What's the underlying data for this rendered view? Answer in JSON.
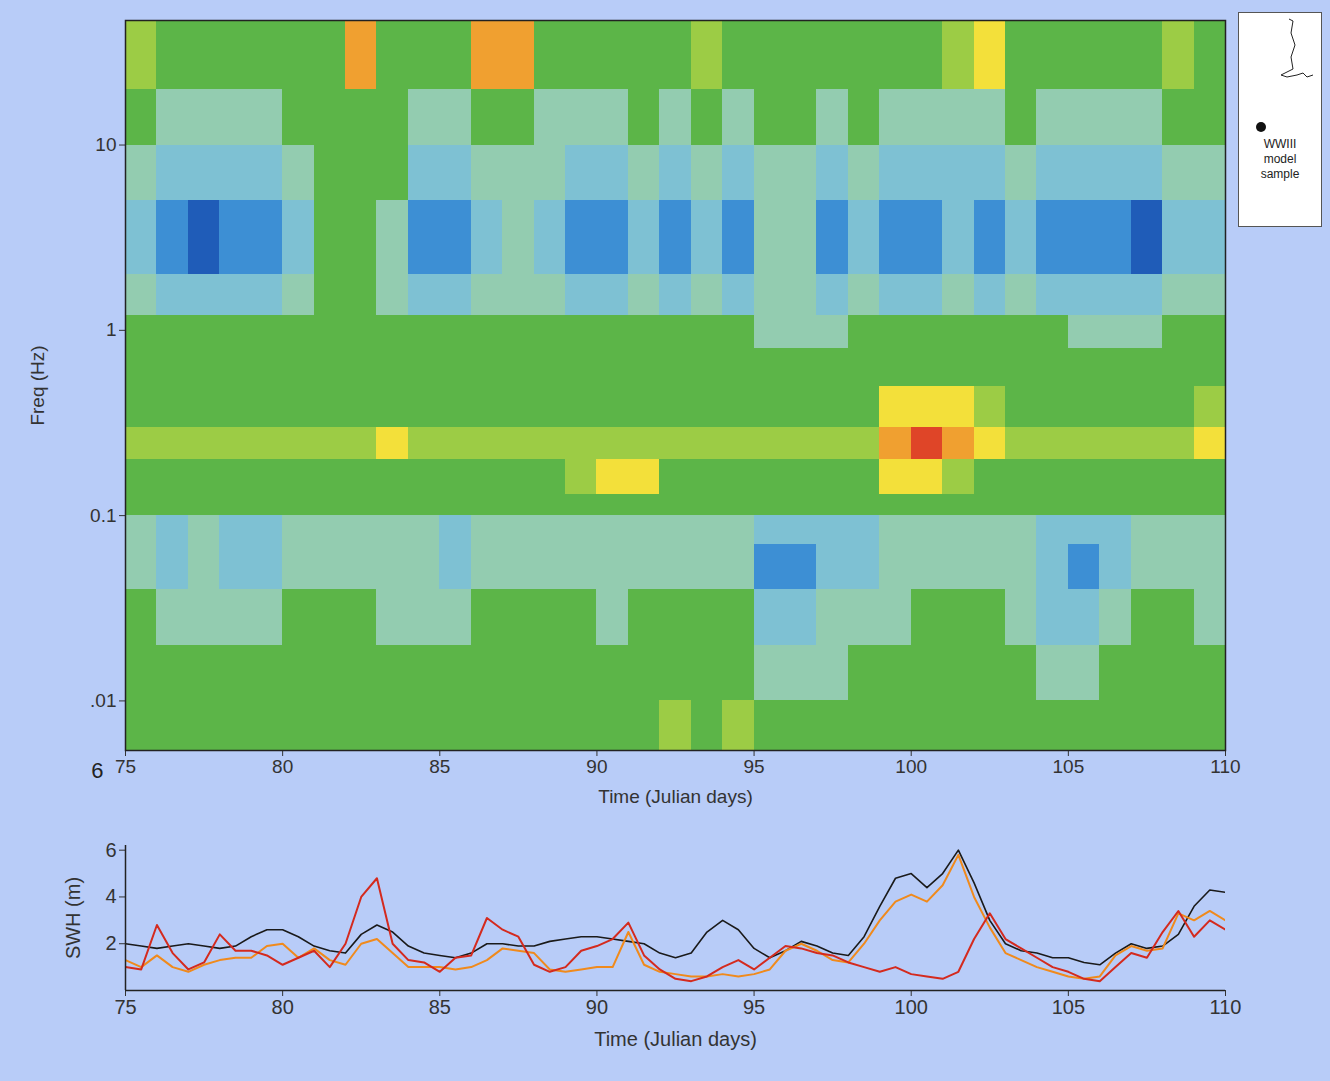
{
  "chart_data": [
    {
      "type": "heatmap",
      "x_label": "Time (Julian days)",
      "y_label": "Freq (Hz)",
      "log": "y",
      "grid": false,
      "xlim": [
        75,
        110
      ],
      "xticks": [
        75,
        80,
        85,
        90,
        95,
        100,
        105,
        110
      ],
      "ylim": [
        0.0054,
        47
      ],
      "yticks": [
        {
          "value": 0.01,
          "label": ".01"
        },
        0.1,
        1,
        10
      ],
      "zlim": [
        1,
        9
      ],
      "x_edges": [
        75,
        76,
        77,
        78,
        79,
        80,
        81,
        82,
        83,
        84,
        85,
        86,
        87,
        88,
        89,
        90,
        91,
        92,
        93,
        94,
        95,
        96,
        97,
        98,
        99,
        100,
        101,
        102,
        103,
        104,
        105,
        106,
        107,
        108,
        109,
        110
      ],
      "y_edges": [
        0.0054,
        0.01,
        0.02,
        0.04,
        0.07,
        0.1,
        0.13,
        0.2,
        0.3,
        0.5,
        0.8,
        1.2,
        2,
        5,
        10,
        20,
        47
      ],
      "cells": [
        [
          5,
          5,
          5,
          5,
          5,
          5,
          5,
          5,
          5,
          5,
          5,
          5,
          5,
          5,
          5,
          5,
          5,
          6,
          5,
          6,
          5,
          5,
          5,
          5,
          5,
          5,
          5,
          5,
          5,
          5,
          5,
          5,
          5,
          5,
          5
        ],
        [
          5,
          5,
          5,
          5,
          5,
          5,
          5,
          5,
          5,
          5,
          5,
          5,
          5,
          5,
          5,
          5,
          5,
          5,
          5,
          5,
          4,
          4,
          4,
          5,
          5,
          5,
          5,
          5,
          5,
          4,
          4,
          5,
          5,
          5,
          5
        ],
        [
          5,
          4,
          4,
          4,
          4,
          5,
          5,
          5,
          4,
          4,
          4,
          5,
          5,
          5,
          5,
          4,
          5,
          5,
          5,
          5,
          3,
          3,
          4,
          4,
          4,
          5,
          5,
          5,
          4,
          3,
          3,
          4,
          5,
          5,
          4
        ],
        [
          4,
          3,
          4,
          3,
          3,
          4,
          4,
          4,
          4,
          4,
          3,
          4,
          4,
          4,
          4,
          4,
          4,
          4,
          4,
          4,
          2,
          2,
          3,
          3,
          4,
          4,
          4,
          4,
          4,
          3,
          2,
          3,
          4,
          4,
          4
        ],
        [
          4,
          3,
          4,
          3,
          3,
          4,
          4,
          4,
          4,
          4,
          3,
          4,
          4,
          4,
          4,
          4,
          4,
          4,
          4,
          4,
          3,
          3,
          3,
          3,
          4,
          4,
          4,
          4,
          4,
          3,
          3,
          3,
          4,
          4,
          4
        ],
        [
          5,
          5,
          5,
          5,
          5,
          5,
          5,
          5,
          5,
          5,
          5,
          5,
          5,
          5,
          5,
          5,
          5,
          5,
          5,
          5,
          5,
          5,
          5,
          5,
          5,
          5,
          5,
          5,
          5,
          5,
          5,
          5,
          5,
          5,
          5
        ],
        [
          5,
          5,
          5,
          5,
          5,
          5,
          5,
          5,
          5,
          5,
          5,
          5,
          5,
          5,
          6,
          7,
          7,
          5,
          5,
          5,
          5,
          5,
          5,
          5,
          7,
          7,
          6,
          5,
          5,
          5,
          5,
          5,
          5,
          5,
          5
        ],
        [
          6,
          6,
          6,
          6,
          6,
          6,
          6,
          6,
          7,
          6,
          6,
          6,
          6,
          6,
          6,
          6,
          6,
          6,
          6,
          6,
          6,
          6,
          6,
          6,
          8,
          9,
          8,
          7,
          6,
          6,
          6,
          6,
          6,
          6,
          7
        ],
        [
          5,
          5,
          5,
          5,
          5,
          5,
          5,
          5,
          5,
          5,
          5,
          5,
          5,
          5,
          5,
          5,
          5,
          5,
          5,
          5,
          5,
          5,
          5,
          5,
          7,
          7,
          7,
          6,
          5,
          5,
          5,
          5,
          5,
          5,
          6
        ],
        [
          5,
          5,
          5,
          5,
          5,
          5,
          5,
          5,
          5,
          5,
          5,
          5,
          5,
          5,
          5,
          5,
          5,
          5,
          5,
          5,
          5,
          5,
          5,
          5,
          5,
          5,
          5,
          5,
          5,
          5,
          5,
          5,
          5,
          5,
          5
        ],
        [
          5,
          5,
          5,
          5,
          5,
          5,
          5,
          5,
          5,
          5,
          5,
          5,
          5,
          5,
          5,
          5,
          5,
          5,
          5,
          5,
          4,
          4,
          4,
          5,
          5,
          5,
          5,
          5,
          5,
          5,
          4,
          4,
          4,
          5,
          5
        ],
        [
          4,
          3,
          3,
          3,
          3,
          4,
          5,
          5,
          4,
          3,
          3,
          4,
          4,
          4,
          3,
          3,
          4,
          3,
          4,
          3,
          4,
          4,
          3,
          4,
          3,
          3,
          4,
          3,
          4,
          3,
          3,
          3,
          3,
          4,
          4
        ],
        [
          3,
          2,
          1,
          2,
          2,
          3,
          5,
          5,
          4,
          2,
          2,
          3,
          4,
          3,
          2,
          2,
          3,
          2,
          3,
          2,
          4,
          4,
          2,
          3,
          2,
          2,
          3,
          2,
          3,
          2,
          2,
          2,
          1,
          3,
          3
        ],
        [
          4,
          3,
          3,
          3,
          3,
          4,
          5,
          5,
          5,
          3,
          3,
          4,
          4,
          4,
          3,
          3,
          4,
          3,
          4,
          3,
          4,
          4,
          3,
          4,
          3,
          3,
          3,
          3,
          4,
          3,
          3,
          3,
          3,
          4,
          4
        ],
        [
          5,
          4,
          4,
          4,
          4,
          5,
          5,
          5,
          5,
          4,
          4,
          5,
          5,
          4,
          4,
          4,
          5,
          4,
          5,
          4,
          5,
          5,
          4,
          5,
          4,
          4,
          4,
          4,
          5,
          4,
          4,
          4,
          4,
          5,
          5
        ],
        [
          6,
          5,
          5,
          5,
          5,
          5,
          5,
          8,
          5,
          5,
          5,
          8,
          8,
          5,
          5,
          5,
          5,
          5,
          6,
          5,
          5,
          5,
          5,
          5,
          5,
          5,
          6,
          7,
          5,
          5,
          5,
          5,
          5,
          6,
          5
        ]
      ],
      "annotations": [
        {
          "text": "6"
        },
        {
          "text": "WWIII model sample"
        }
      ]
    },
    {
      "type": "line",
      "x_label": "Time (Julian days)",
      "y_label": "SWH (m)",
      "grid": false,
      "xlim": [
        75,
        110
      ],
      "xticks": [
        75,
        80,
        85,
        90,
        95,
        100,
        105,
        110
      ],
      "ylim": [
        0,
        6.2
      ],
      "yticks": [
        2,
        4,
        6
      ],
      "x": [
        75,
        75.5,
        76,
        76.5,
        77,
        77.5,
        78,
        78.5,
        79,
        79.5,
        80,
        80.5,
        81,
        81.5,
        82,
        82.5,
        83,
        83.5,
        84,
        84.5,
        85,
        85.5,
        86,
        86.5,
        87,
        87.5,
        88,
        88.5,
        89,
        89.5,
        90,
        90.5,
        91,
        91.5,
        92,
        92.5,
        93,
        93.5,
        94,
        94.5,
        95,
        95.5,
        96,
        96.5,
        97,
        97.5,
        98,
        98.5,
        99,
        99.5,
        100,
        100.5,
        101,
        101.5,
        102,
        102.5,
        103,
        103.5,
        104,
        104.5,
        105,
        105.5,
        106,
        106.5,
        107,
        107.5,
        108,
        108.5,
        109,
        109.5,
        110
      ],
      "series": [
        {
          "color": "#1a1a1a",
          "values": [
            2.0,
            1.9,
            1.8,
            1.9,
            2.0,
            1.9,
            1.8,
            1.9,
            2.3,
            2.6,
            2.6,
            2.3,
            1.9,
            1.7,
            1.6,
            2.4,
            2.8,
            2.5,
            1.9,
            1.6,
            1.5,
            1.4,
            1.6,
            2.0,
            2.0,
            1.9,
            1.9,
            2.1,
            2.2,
            2.3,
            2.3,
            2.2,
            2.1,
            2.0,
            1.6,
            1.4,
            1.6,
            2.5,
            3.0,
            2.6,
            1.8,
            1.4,
            1.7,
            2.1,
            1.9,
            1.6,
            1.5,
            2.3,
            3.6,
            4.8,
            5.0,
            4.4,
            5.0,
            6.0,
            4.6,
            3.0,
            2.0,
            1.7,
            1.6,
            1.4,
            1.4,
            1.2,
            1.1,
            1.6,
            2.0,
            1.8,
            1.9,
            2.4,
            3.6,
            4.3,
            4.2
          ]
        },
        {
          "color": "#f08a1c",
          "values": [
            1.3,
            1.0,
            1.5,
            1.0,
            0.8,
            1.1,
            1.3,
            1.4,
            1.4,
            1.9,
            2.0,
            1.4,
            1.8,
            1.3,
            1.1,
            2.0,
            2.2,
            1.6,
            1.0,
            1.0,
            1.0,
            0.9,
            1.0,
            1.3,
            1.8,
            1.7,
            1.6,
            0.9,
            0.8,
            0.9,
            1.0,
            1.0,
            2.5,
            1.1,
            0.8,
            0.7,
            0.6,
            0.6,
            0.7,
            0.6,
            0.7,
            0.9,
            1.7,
            2.0,
            1.7,
            1.3,
            1.2,
            2.0,
            3.0,
            3.8,
            4.1,
            3.8,
            4.5,
            5.8,
            4.0,
            2.7,
            1.6,
            1.3,
            1.0,
            0.8,
            0.6,
            0.5,
            0.6,
            1.5,
            1.9,
            1.7,
            1.8,
            3.3,
            3.0,
            3.4,
            3.0
          ]
        },
        {
          "color": "#d42a1e",
          "values": [
            1.0,
            0.9,
            2.8,
            1.6,
            0.9,
            1.2,
            2.4,
            1.7,
            1.7,
            1.5,
            1.1,
            1.4,
            1.7,
            1.0,
            2.0,
            4.0,
            4.8,
            2.0,
            1.3,
            1.2,
            0.8,
            1.4,
            1.5,
            3.1,
            2.6,
            2.3,
            1.1,
            0.8,
            1.0,
            1.7,
            1.9,
            2.2,
            2.9,
            1.5,
            0.9,
            0.5,
            0.4,
            0.6,
            1.0,
            1.3,
            0.9,
            1.4,
            1.9,
            1.8,
            1.6,
            1.5,
            1.2,
            1.0,
            0.8,
            1.0,
            0.7,
            0.6,
            0.5,
            0.8,
            2.2,
            3.3,
            2.2,
            1.8,
            1.4,
            1.0,
            0.8,
            0.5,
            0.4,
            1.0,
            1.6,
            1.4,
            2.5,
            3.4,
            2.3,
            3.0,
            2.6
          ]
        }
      ]
    }
  ]
}
